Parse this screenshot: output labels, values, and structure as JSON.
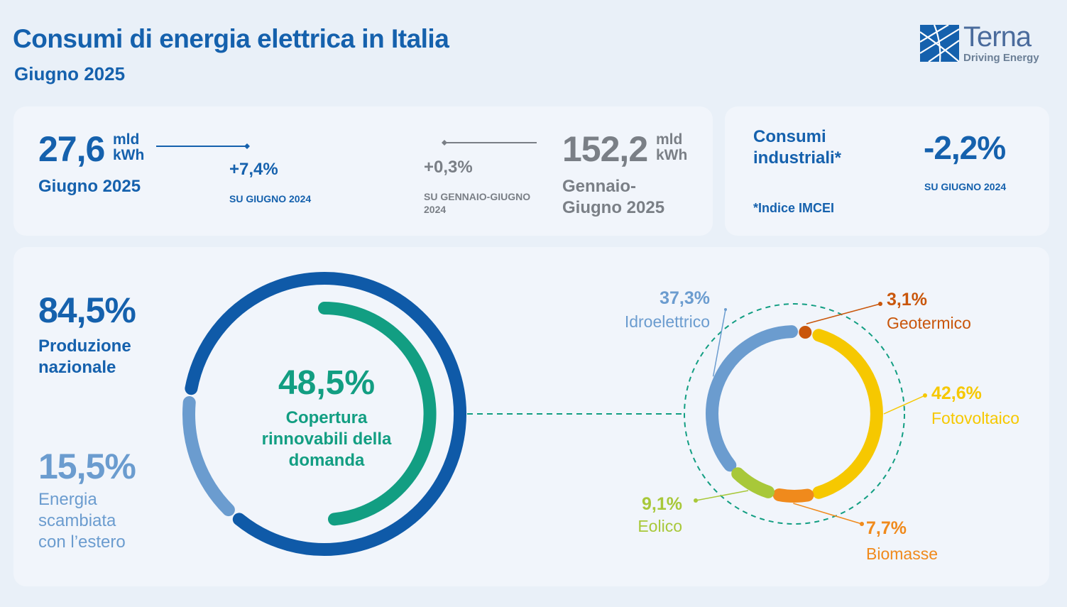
{
  "header": {
    "title": "Consumi di energia elettrica in Italia",
    "subtitle": "Giugno 2025"
  },
  "logo": {
    "name": "Terna",
    "tagline": "Driving Energy",
    "icon": "terna-logo-icon"
  },
  "monthly": {
    "value": "27,6",
    "unit_top": "mld",
    "unit_bottom": "kWh",
    "period": "Giugno 2025",
    "change": "+7,4%",
    "change_ref": "SU GIUGNO 2024"
  },
  "ytd": {
    "value": "152,2",
    "unit_top": "mld",
    "unit_bottom": "kWh",
    "period_line1": "Gennaio-",
    "period_line2": "Giugno 2025",
    "change": "+0,3%",
    "change_ref_line1": "SU GENNAIO-GIUGNO",
    "change_ref_line2": "2024"
  },
  "industrial": {
    "label_line1": "Consumi",
    "label_line2": "industriali*",
    "value": "-2,2%",
    "ref": "SU GIUGNO 2024",
    "note": "*Indice IMCEI"
  },
  "colors": {
    "brand_blue": "#1561ad",
    "dark_ring": "#0f5aa8",
    "light_ring": "#6b9ccf",
    "renewable_green": "#129e82",
    "hydro": "#6b9ccf",
    "geothermal": "#c9560b",
    "solar": "#f6c800",
    "biomass": "#f08a1c",
    "wind": "#a8c839"
  },
  "chart_data": [
    {
      "type": "pie",
      "categories": [
        "Produzione nazionale",
        "Energia scambiata con l'estero"
      ],
      "values": [
        84.5,
        15.5
      ],
      "labels": [
        "84,5%",
        "15,5%"
      ],
      "label_lines": [
        [
          "Produzione",
          "nazionale"
        ],
        [
          "Energia",
          "scambiata",
          "con l’estero"
        ]
      ],
      "inner_value": 48.5,
      "inner_label": "48,5%",
      "inner_text_lines": [
        "Copertura",
        "rinnovabili della",
        "domanda"
      ]
    },
    {
      "type": "pie",
      "categories": [
        "Idroelettrico",
        "Geotermico",
        "Fotovoltaico",
        "Biomasse",
        "Eolico"
      ],
      "values": [
        37.3,
        3.1,
        42.6,
        7.7,
        9.1
      ],
      "labels": [
        "37,3%",
        "3,1%",
        "42,6%",
        "7,7%",
        "9,1%"
      ]
    }
  ]
}
